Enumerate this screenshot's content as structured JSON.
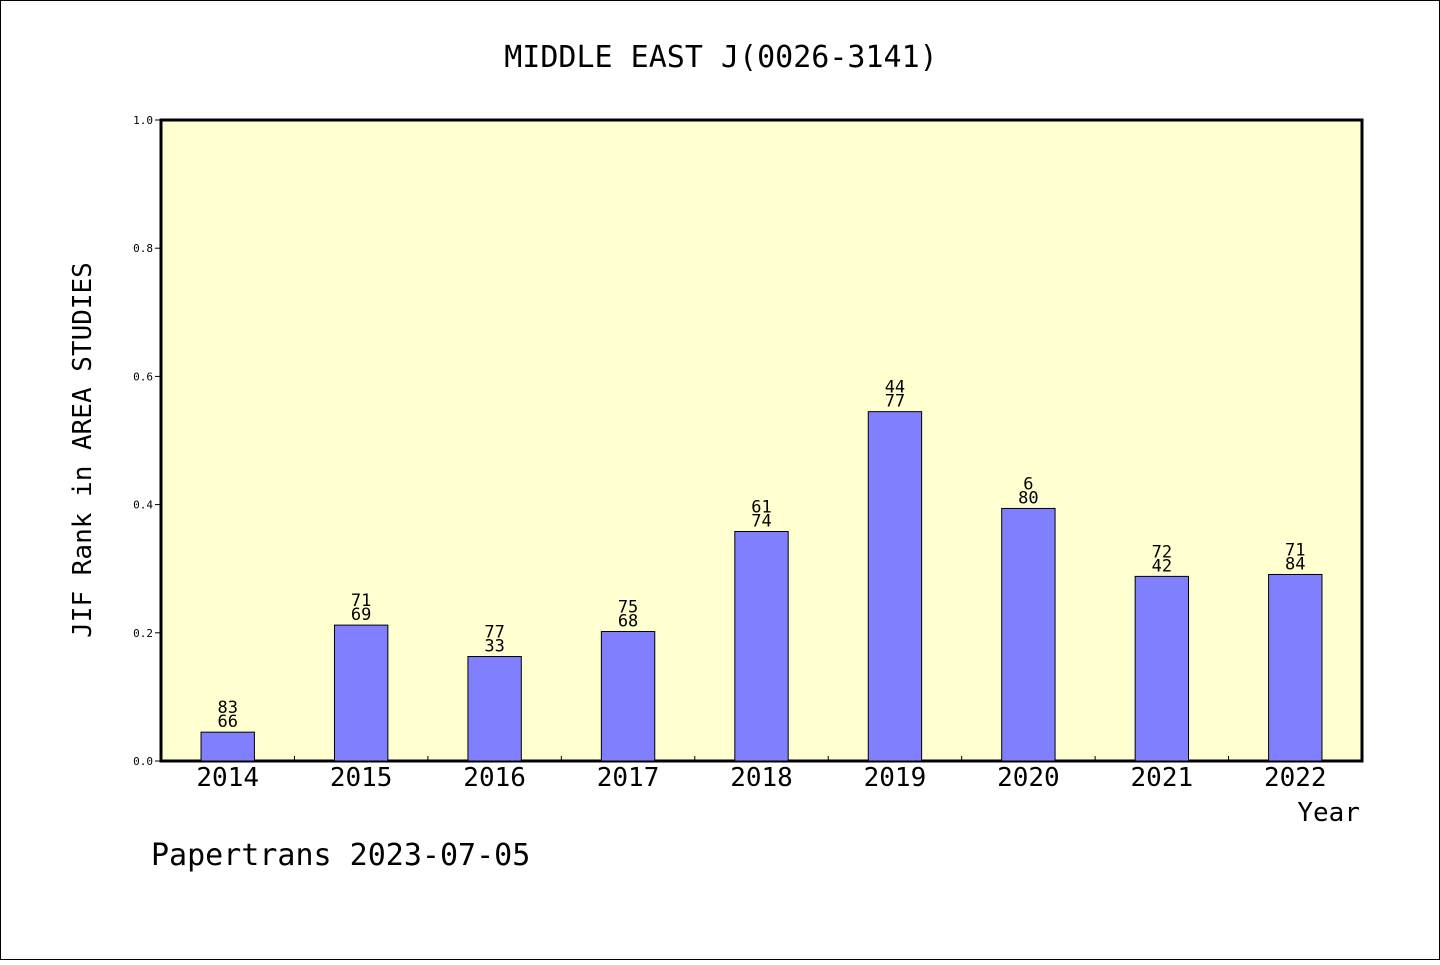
{
  "chart_data": {
    "type": "bar",
    "title": "MIDDLE EAST J(0026-3141)",
    "xlabel": "Year",
    "ylabel": "JIF Rank in AREA STUDIES",
    "footer": "Papertrans 2023-07-05",
    "categories": [
      "2014",
      "2015",
      "2016",
      "2017",
      "2018",
      "2019",
      "2020",
      "2021",
      "2022"
    ],
    "values": [
      0.045,
      0.212,
      0.163,
      0.202,
      0.358,
      0.545,
      0.394,
      0.288,
      0.291
    ],
    "label_top": [
      "83",
      "71",
      "77",
      "75",
      "61",
      "44",
      "6",
      "72",
      "71"
    ],
    "label_bottom": [
      "66",
      "69",
      "33",
      "68",
      "74",
      "77",
      "80",
      "42",
      "84"
    ],
    "ylim": [
      0,
      1.0
    ],
    "yticks": [
      "0.0",
      "0.2",
      "0.4",
      "0.6",
      "0.8",
      "1.0"
    ],
    "grid": false,
    "colors": {
      "plot_background": "#ffffd0",
      "bar_fill": "#8080ff",
      "bar_stroke": "#000000"
    }
  }
}
